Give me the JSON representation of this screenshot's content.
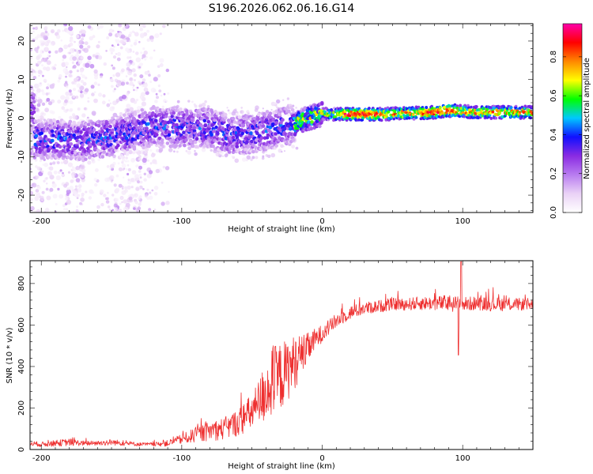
{
  "chart_data": [
    {
      "type": "heatmap",
      "title": "S196.2026.062.06.16.G14",
      "xlabel": "Height of straight line (km)",
      "ylabel": "Frequency (Hz)",
      "xlim": [
        -208,
        150
      ],
      "ylim": [
        -24.5,
        24.5
      ],
      "x_ticks": [
        -200,
        -100,
        0,
        100
      ],
      "y_ticks": [
        -20,
        -10,
        0,
        10,
        20
      ],
      "colorbar": {
        "label": "Normalized spectral amplitude",
        "range": [
          0.0,
          0.97
        ],
        "ticks": [
          0.0,
          0.2,
          0.4,
          0.6,
          0.8
        ],
        "colors": [
          "#ffffff",
          "#ead2f6",
          "#b87cf0",
          "#8a2be2",
          "#1010ff",
          "#00c8ff",
          "#00ff00",
          "#ffff00",
          "#ff8800",
          "#ff0000",
          "#ff00aa"
        ]
      },
      "ridge_track": [
        {
          "x": -205,
          "y": -5.5
        },
        {
          "x": -185,
          "y": -5.5
        },
        {
          "x": -170,
          "y": -6
        },
        {
          "x": -155,
          "y": -5
        },
        {
          "x": -140,
          "y": -4
        },
        {
          "x": -120,
          "y": -2
        },
        {
          "x": -100,
          "y": -2.5
        },
        {
          "x": -80,
          "y": -2.5
        },
        {
          "x": -65,
          "y": -4.5
        },
        {
          "x": -50,
          "y": -4
        },
        {
          "x": -35,
          "y": -3
        },
        {
          "x": -20,
          "y": -1.5
        },
        {
          "x": -10,
          "y": 0
        },
        {
          "x": 0,
          "y": 1
        },
        {
          "x": 10,
          "y": 1
        },
        {
          "x": 40,
          "y": 1
        },
        {
          "x": 80,
          "y": 1.5
        },
        {
          "x": 90,
          "y": 2
        },
        {
          "x": 110,
          "y": 1.5
        },
        {
          "x": 150,
          "y": 1.5
        }
      ]
    },
    {
      "type": "line",
      "xlabel": "Height of straight line (km)",
      "ylabel": "SNR (10 * v/v)",
      "xlim": [
        -208,
        150
      ],
      "ylim": [
        0,
        910
      ],
      "x_ticks": [
        -200,
        -100,
        0,
        100
      ],
      "y_ticks": [
        0,
        200,
        400,
        600,
        800
      ],
      "color": "#ee3030",
      "series": [
        {
          "name": "SNR",
          "x": [
            -208,
            -200,
            -190,
            -180,
            -170,
            -160,
            -150,
            -140,
            -130,
            -120,
            -110,
            -100,
            -90,
            -80,
            -70,
            -60,
            -50,
            -45,
            -40,
            -35,
            -30,
            -25,
            -20,
            -15,
            -10,
            -5,
            0,
            5,
            10,
            15,
            20,
            30,
            40,
            50,
            60,
            70,
            80,
            90,
            100,
            110,
            120,
            130,
            140,
            150
          ],
          "values": [
            30,
            25,
            30,
            35,
            30,
            30,
            35,
            30,
            25,
            25,
            30,
            50,
            70,
            90,
            100,
            130,
            180,
            220,
            290,
            320,
            350,
            380,
            420,
            450,
            490,
            530,
            560,
            590,
            620,
            640,
            660,
            680,
            690,
            700,
            700,
            705,
            705,
            705,
            700,
            705,
            700,
            700,
            700,
            700
          ],
          "noise_amplitude": [
            20,
            20,
            25,
            30,
            20,
            20,
            25,
            20,
            15,
            15,
            25,
            40,
            60,
            80,
            90,
            110,
            150,
            200,
            260,
            300,
            280,
            250,
            220,
            180,
            120,
            90,
            70,
            60,
            60,
            55,
            55,
            50,
            50,
            50,
            50,
            55,
            55,
            70,
            60,
            55,
            55,
            55,
            50,
            50
          ]
        }
      ]
    }
  ]
}
